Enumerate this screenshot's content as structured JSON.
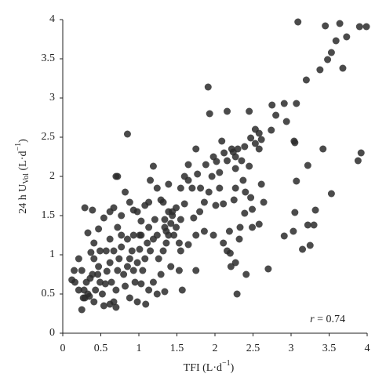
{
  "chart_data": {
    "type": "scatter",
    "xlabel": {
      "main": "TFI (L·d",
      "sup": "−1",
      "end": ")"
    },
    "ylabel": {
      "main": "24 h U",
      "sub": "Vol",
      "unit": " (L·d",
      "sup": "−1",
      "end": ")"
    },
    "annotation": {
      "italic": "r",
      "text": " = 0.74"
    },
    "color": "#2b2b2b",
    "xlim": [
      0,
      4
    ],
    "ylim": [
      0,
      4
    ],
    "xticks": [
      0,
      0.5,
      1,
      1.5,
      2,
      2.5,
      3,
      3.5,
      4
    ],
    "yticks": [
      0,
      0.5,
      1,
      1.5,
      2,
      2.5,
      3,
      3.5,
      4
    ],
    "x": [
      3.09,
      3.45,
      3.64,
      3.9,
      3.99,
      3.59,
      3.73,
      3.53,
      3.48,
      3.68,
      3.38,
      3.2,
      3.07,
      2.91,
      2.75,
      2.8,
      2.94,
      2.74,
      3.04,
      3.05,
      1.91,
      1.93,
      2.16,
      2.45,
      0.85,
      3.92,
      3.88,
      3.42,
      3.22,
      3.07,
      3.53,
      3.32,
      3.05,
      3.3,
      3.22,
      3.03,
      2.91,
      3.25,
      3.15,
      2.7,
      2.29,
      2.2,
      2.53,
      2.58,
      2.47,
      2.53,
      2.61,
      2.58,
      2.39,
      2.3,
      2.24,
      2.27,
      2.16,
      2.35,
      2.45,
      2.27,
      2.22,
      2.09,
      2.12,
      1.98,
      2.02,
      1.88,
      1.96,
      2.06,
      1.77,
      1.65,
      1.7,
      1.81,
      1.92,
      2.06,
      2.27,
      2.37,
      2.4,
      2.47,
      2.61,
      2.49,
      2.39,
      2.25,
      2.11,
      2.01,
      1.86,
      1.8,
      1.72,
      1.86,
      1.98,
      2.11,
      1.75,
      1.65,
      1.55,
      1.6,
      1.49,
      1.39,
      1.34,
      1.75,
      1.65,
      1.6,
      1.55,
      2.19,
      2.32,
      2.41,
      2.27,
      2.21,
      1.75,
      2.16,
      2.58,
      2.49,
      2.64,
      2.33,
      0.12,
      0.15,
      0.21,
      0.25,
      0.28,
      0.31,
      0.29,
      0.25,
      0.33,
      0.36,
      0.39,
      0.41,
      0.43,
      0.47,
      0.49,
      0.52,
      0.56,
      0.58,
      0.62,
      0.64,
      0.67,
      0.7,
      0.72,
      0.74,
      0.77,
      0.8,
      0.82,
      0.85,
      0.88,
      0.91,
      0.93,
      0.95,
      0.98,
      1.01,
      1.03,
      1.05,
      1.08,
      1.11,
      1.13,
      1.15,
      1.19,
      1.21,
      1.24,
      1.26,
      1.29,
      1.32,
      1.34,
      1.36,
      1.39,
      1.42,
      1.44,
      1.46,
      1.49,
      1.53,
      1.57,
      1.24,
      1.13,
      1.09,
      0.98,
      0.88,
      0.7,
      0.62,
      0.54,
      0.41,
      0.35,
      0.27,
      0.49,
      0.41,
      0.47,
      0.33,
      0.62,
      0.67,
      0.72,
      0.77,
      0.67,
      0.62,
      0.54,
      0.39,
      0.29,
      0.72,
      0.7,
      0.82,
      0.88,
      0.93,
      0.98,
      1.03,
      1.08,
      1.15,
      1.19,
      1.24,
      1.29,
      1.32,
      1.13,
      0.77,
      0.85,
      0.57,
      0.21,
      0.16,
      0.37,
      0.46,
      0.93,
      1.01,
      1.39,
      1.42,
      1.53,
      1.55,
      1.19,
      1.03,
      1.34,
      1.44,
      1.36
    ],
    "values": [
      3.97,
      3.92,
      3.95,
      3.91,
      3.91,
      3.73,
      3.78,
      3.58,
      3.49,
      3.38,
      3.36,
      3.23,
      2.93,
      2.93,
      2.91,
      2.78,
      2.7,
      2.59,
      2.45,
      2.43,
      3.14,
      2.8,
      2.83,
      2.83,
      2.54,
      2.3,
      2.2,
      2.35,
      2.14,
      1.94,
      1.78,
      1.57,
      1.54,
      1.38,
      1.38,
      1.3,
      1.24,
      1.12,
      1.07,
      0.82,
      0.5,
      1.02,
      2.6,
      2.55,
      2.49,
      2.42,
      2.47,
      2.35,
      2.38,
      2.35,
      2.31,
      2.25,
      2.2,
      2.2,
      2.13,
      2.1,
      2.35,
      2.45,
      2.3,
      2.25,
      2.19,
      2.15,
      2.0,
      2.05,
      2.03,
      1.95,
      1.85,
      1.85,
      1.8,
      1.85,
      1.85,
      1.95,
      1.8,
      1.73,
      1.9,
      1.58,
      1.53,
      1.7,
      1.65,
      1.63,
      1.67,
      1.55,
      1.47,
      1.3,
      1.25,
      1.15,
      1.25,
      1.13,
      1.45,
      1.65,
      1.6,
      1.55,
      1.45,
      2.35,
      2.15,
      2.0,
      1.85,
      1.3,
      1.2,
      0.75,
      0.9,
      0.85,
      0.8,
      1.05,
      1.39,
      1.35,
      1.67,
      1.35,
      0.68,
      0.8,
      0.55,
      0.8,
      0.55,
      0.65,
      0.45,
      0.3,
      0.5,
      0.7,
      0.75,
      0.95,
      0.55,
      0.85,
      0.65,
      0.5,
      0.63,
      0.79,
      0.9,
      0.65,
      0.4,
      0.55,
      0.8,
      0.95,
      1.1,
      0.75,
      0.6,
      0.85,
      0.95,
      1.05,
      0.8,
      0.65,
      0.9,
      1.07,
      1.25,
      0.8,
      0.95,
      1.15,
      1.35,
      1.05,
      1.2,
      1.45,
      1.25,
      0.95,
      0.75,
      1.05,
      1.35,
      1.15,
      1.25,
      1.4,
      1.5,
      1.25,
      1.35,
      1.15,
      0.55,
      0.5,
      0.55,
      0.37,
      0.4,
      0.45,
      0.33,
      0.37,
      0.35,
      0.4,
      0.47,
      0.45,
      1.05,
      1.15,
      1.33,
      1.28,
      1.2,
      1.05,
      1.35,
      1.5,
      1.6,
      1.55,
      1.47,
      1.57,
      1.6,
      2.0,
      2.0,
      1.8,
      1.67,
      1.57,
      1.55,
      1.43,
      1.63,
      1.95,
      2.13,
      1.85,
      1.7,
      1.67,
      1.67,
      1.25,
      1.2,
      1.05,
      0.95,
      0.65,
      1.03,
      0.75,
      1.25,
      1.25,
      1.9,
      0.85,
      0.8,
      1.05,
      0.65,
      0.63,
      0.53,
      1.55,
      1.3
    ]
  }
}
